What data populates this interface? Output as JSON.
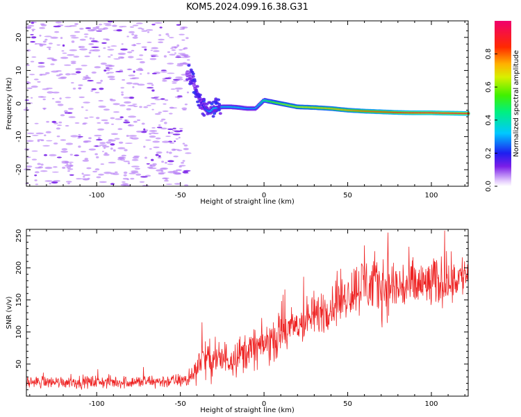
{
  "title": "KOM5.2024.099.16.38.G31",
  "chart_data": [
    {
      "type": "heatmap",
      "title": "KOM5.2024.099.16.38.G31",
      "xlabel": "Height of straight line (km)",
      "ylabel": "Frequency (Hz)",
      "xlim": [
        -142,
        122
      ],
      "ylim": [
        -25,
        25
      ],
      "xticks": [
        -100,
        -50,
        0,
        50,
        100
      ],
      "yticks": [
        -20,
        -10,
        0,
        10,
        20
      ],
      "xtick_labels": [
        "-100",
        "-50",
        "0",
        "50",
        "100"
      ],
      "ytick_labels": [
        "-20",
        "-10",
        "0",
        "10",
        "20"
      ],
      "grid": false,
      "colorbar": {
        "label": "Normalized spectral amplitude",
        "range": [
          0,
          1
        ],
        "ticks": [
          0.0,
          0.2,
          0.4,
          0.6,
          0.8
        ],
        "tick_labels": [
          "0.0",
          "0.2",
          "0.4",
          "0.6",
          "0.8"
        ],
        "colormap": "rainbow (white at 0, violet, blue, cyan, green, yellow, orange, red, magenta at 1)"
      },
      "ridge": {
        "description": "dominant frequency track",
        "x": [
          -45,
          -42,
          -40,
          -38,
          -36,
          -34,
          -32,
          -30,
          -25,
          -20,
          -15,
          -10,
          -5,
          0,
          5,
          10,
          20,
          30,
          40,
          50,
          60,
          70,
          80,
          90,
          100,
          110,
          122
        ],
        "y": [
          9,
          6,
          3,
          1,
          -1,
          -2,
          -2.5,
          -1.5,
          -1,
          -1,
          -1.2,
          -1.5,
          -1.5,
          1,
          0.5,
          0,
          -1,
          -1.2,
          -1.5,
          -2,
          -2.3,
          -2.5,
          -2.7,
          -2.8,
          -2.8,
          -2.9,
          -3
        ],
        "amplitude": [
          0.1,
          0.1,
          0.12,
          0.15,
          0.2,
          0.25,
          0.3,
          0.35,
          0.35,
          0.35,
          0.35,
          0.3,
          0.3,
          0.45,
          0.55,
          0.6,
          0.65,
          0.7,
          0.72,
          0.75,
          0.8,
          0.82,
          0.85,
          0.88,
          0.9,
          0.9,
          0.9
        ]
      },
      "noise_region": {
        "x_range": [
          -142,
          -45
        ],
        "y_range": [
          -25,
          25
        ],
        "amplitude_range": [
          0.02,
          0.2
        ]
      },
      "colors": {
        "noise": "#b57cf5",
        "noise_strong": "#7a22e8"
      }
    },
    {
      "type": "line",
      "xlabel": "Height of straight line (km)",
      "ylabel": "SNR (v/v)",
      "xlim": [
        -142,
        122
      ],
      "ylim": [
        0,
        260
      ],
      "xticks": [
        -100,
        -50,
        0,
        50,
        100
      ],
      "yticks": [
        50,
        100,
        150,
        200,
        250
      ],
      "xtick_labels": [
        "-100",
        "-50",
        "0",
        "50",
        "100"
      ],
      "ytick_labels": [
        "50",
        "100",
        "150",
        "200",
        "250"
      ],
      "grid": false,
      "line_color": "#ee2222",
      "trend": {
        "x": [
          -142,
          -120,
          -100,
          -80,
          -60,
          -45,
          -40,
          -38,
          -30,
          -20,
          -10,
          0,
          10,
          20,
          30,
          40,
          50,
          55,
          60,
          70,
          80,
          90,
          100,
          110,
          122
        ],
        "y": [
          22,
          22,
          22,
          22,
          23,
          25,
          45,
          60,
          55,
          60,
          70,
          80,
          95,
          110,
          125,
          140,
          158,
          170,
          175,
          172,
          170,
          172,
          175,
          180,
          190
        ]
      },
      "spread": {
        "x": [
          -142,
          -45,
          -38,
          0,
          40,
          55,
          60,
          100,
          122
        ],
        "y": [
          10,
          12,
          30,
          35,
          40,
          45,
          55,
          45,
          35
        ]
      },
      "peaks": [
        {
          "x": 60,
          "y": 235
        },
        {
          "x": 74,
          "y": 255
        },
        {
          "x": 108,
          "y": 258
        },
        {
          "x": -37,
          "y": 115
        }
      ]
    }
  ]
}
